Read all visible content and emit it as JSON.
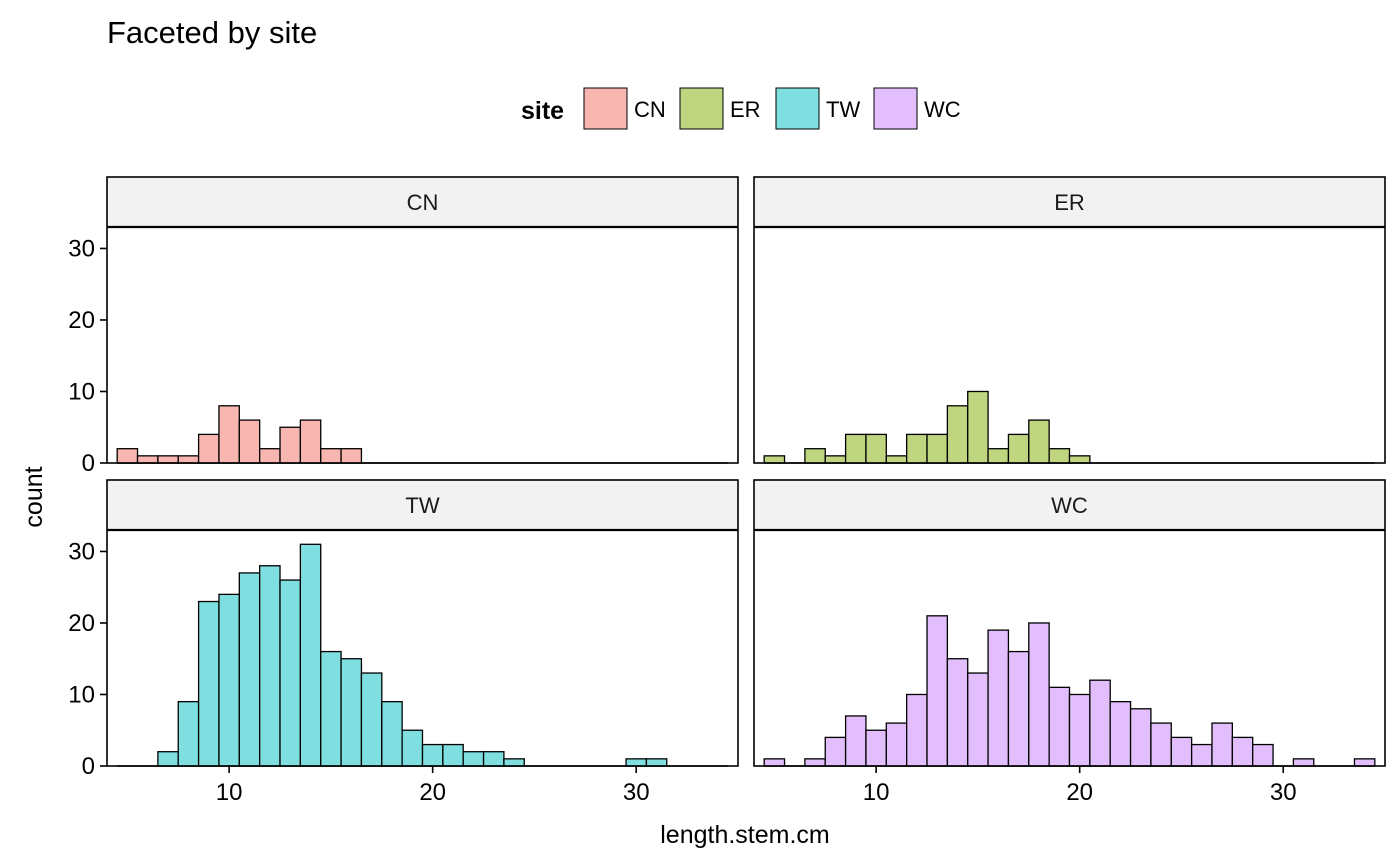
{
  "chart_data": {
    "type": "bar",
    "subtype": "faceted histogram",
    "title": "Faceted by site",
    "xlabel": "length.stem.cm",
    "ylabel": "count",
    "xlim": [
      4,
      35
    ],
    "ylim": [
      0,
      33
    ],
    "x_ticks": [
      10,
      20,
      30
    ],
    "y_ticks": [
      0,
      10,
      20,
      30
    ],
    "bin_width": 1,
    "bin_start": 4.5,
    "grid": false,
    "legend": {
      "title": "site",
      "position": "top",
      "items": [
        {
          "label": "CN",
          "color": "#F8B6B0"
        },
        {
          "label": "ER",
          "color": "#BFD580"
        },
        {
          "label": "TW",
          "color": "#7FDEDF"
        },
        {
          "label": "WC",
          "color": "#E3BEFC"
        }
      ]
    },
    "facets": [
      {
        "name": "CN",
        "color": "#F8B6B0",
        "counts": [
          2,
          1,
          1,
          1,
          4,
          8,
          6,
          2,
          5,
          6,
          2,
          2,
          0,
          0,
          0,
          0,
          0,
          0,
          0,
          0,
          0,
          0,
          0,
          0,
          0,
          0,
          0,
          0,
          0,
          0
        ]
      },
      {
        "name": "ER",
        "color": "#BFD580",
        "counts": [
          1,
          0,
          2,
          1,
          4,
          4,
          1,
          4,
          4,
          8,
          10,
          2,
          4,
          6,
          2,
          1,
          0,
          0,
          0,
          0,
          0,
          0,
          0,
          0,
          0,
          0,
          0,
          0,
          0,
          0
        ]
      },
      {
        "name": "TW",
        "color": "#7FDEDF",
        "counts": [
          0,
          0,
          2,
          9,
          23,
          24,
          27,
          28,
          26,
          31,
          16,
          15,
          13,
          9,
          5,
          3,
          3,
          2,
          2,
          1,
          0,
          0,
          0,
          0,
          0,
          1,
          1,
          0,
          0,
          0
        ]
      },
      {
        "name": "WC",
        "color": "#E3BEFC",
        "counts": [
          1,
          0,
          1,
          4,
          7,
          5,
          6,
          10,
          21,
          15,
          13,
          19,
          16,
          20,
          11,
          10,
          12,
          9,
          8,
          6,
          4,
          3,
          6,
          4,
          3,
          0,
          1,
          0,
          0,
          1
        ]
      }
    ]
  }
}
